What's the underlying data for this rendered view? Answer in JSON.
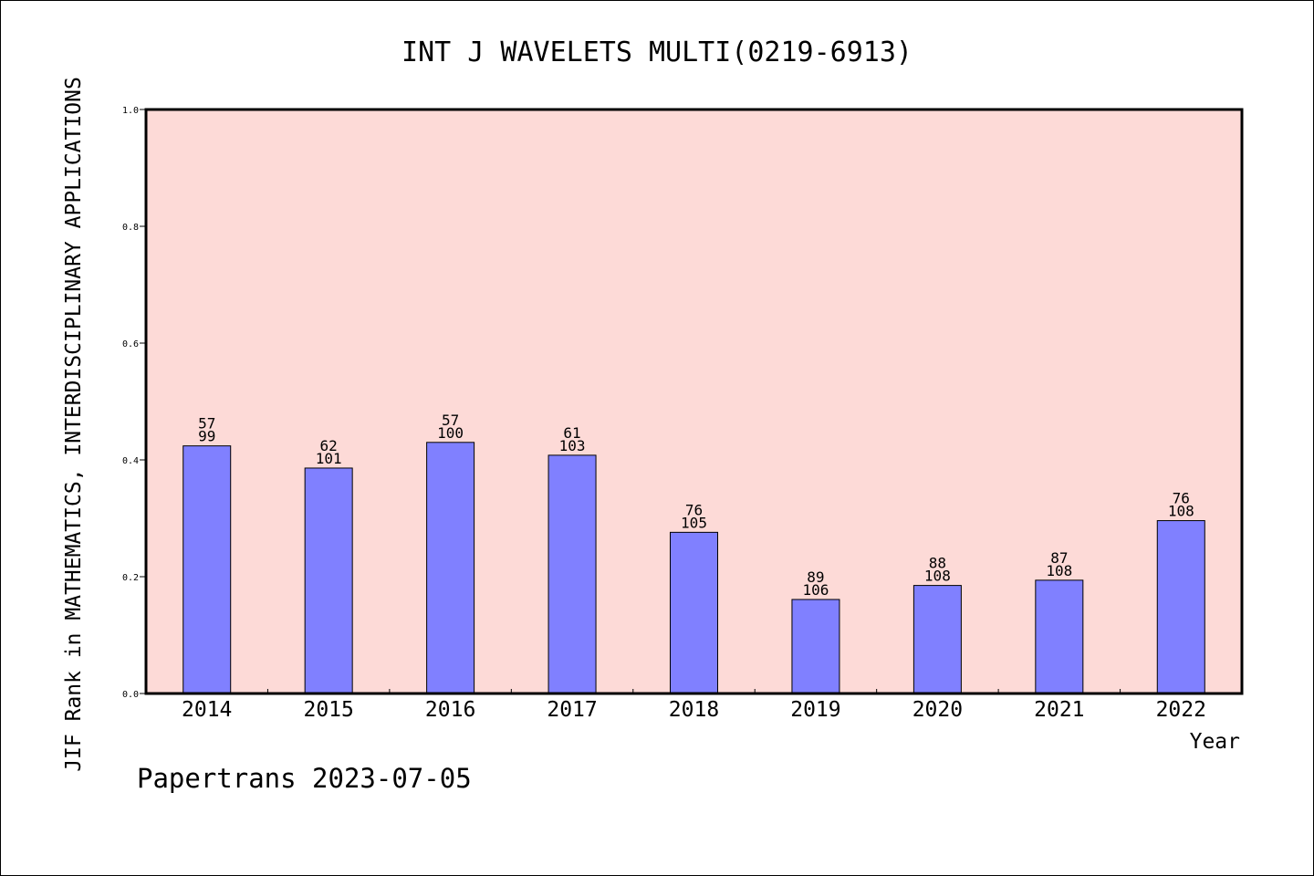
{
  "chart_data": {
    "type": "bar",
    "title": "INT J WAVELETS MULTI(0219-6913)",
    "xlabel": "Year",
    "ylabel": "JIF Rank in MATHEMATICS,  INTERDISCIPLINARY APPLICATIONS",
    "ylim": [
      0,
      1.0
    ],
    "yticks": [
      "0.0",
      "0.2",
      "0.4",
      "0.6",
      "0.8",
      "1.0"
    ],
    "categories": [
      "2014",
      "2015",
      "2016",
      "2017",
      "2018",
      "2019",
      "2020",
      "2021",
      "2022"
    ],
    "values": [
      0.424,
      0.386,
      0.43,
      0.408,
      0.276,
      0.161,
      0.185,
      0.194,
      0.296
    ],
    "rank": [
      "57",
      "62",
      "57",
      "61",
      "76",
      "89",
      "88",
      "87",
      "76"
    ],
    "total": [
      "99",
      "101",
      "100",
      "103",
      "105",
      "106",
      "108",
      "108",
      "108"
    ],
    "grid": false,
    "legend": "none",
    "colors": {
      "plot_background": "#fddad7",
      "bar_fill": "#8080ff",
      "bar_stroke": "#000000",
      "frame": "#000000"
    }
  },
  "footer": {
    "text": "Papertrans 2023-07-05"
  }
}
